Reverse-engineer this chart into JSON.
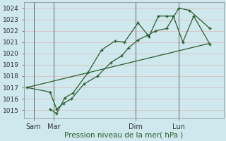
{
  "bg_color": "#cee8ee",
  "grid_color": "#ddb8b8",
  "line_color": "#2a5e2a",
  "title": "Pression niveau de la mer( hPa )",
  "ylim": [
    1014.3,
    1024.5
  ],
  "yticks": [
    1015,
    1016,
    1017,
    1018,
    1019,
    1020,
    1021,
    1022,
    1023,
    1024
  ],
  "day_labels": [
    "Sam",
    "Mar",
    "Dim",
    "Lun"
  ],
  "day_positions": [
    0.5,
    2.0,
    8.0,
    11.2
  ],
  "vline_positions": [
    0.5,
    2.0,
    8.0,
    11.2
  ],
  "xlim": [
    -0.2,
    14.5
  ],
  "series1_x": [
    0.0,
    1.7,
    2.2,
    2.7,
    3.3,
    4.2,
    5.2,
    6.2,
    7.0,
    7.5,
    8.2,
    8.9,
    9.5,
    10.3,
    11.2,
    12.0,
    13.5
  ],
  "series1_y": [
    1017.0,
    1016.6,
    1015.1,
    1015.6,
    1016.0,
    1017.3,
    1018.0,
    1019.2,
    1019.8,
    1020.5,
    1021.2,
    1021.6,
    1022.0,
    1022.2,
    1024.0,
    1023.8,
    1022.2
  ],
  "series2_x": [
    1.7,
    2.2,
    2.8,
    3.4,
    4.5,
    5.5,
    6.5,
    7.2,
    8.2,
    9.0,
    9.7,
    10.3,
    10.8,
    11.5,
    12.3,
    13.5
  ],
  "series2_y": [
    1015.1,
    1014.7,
    1016.1,
    1016.5,
    1018.3,
    1020.3,
    1021.1,
    1021.0,
    1022.7,
    1021.5,
    1023.3,
    1023.3,
    1023.3,
    1021.0,
    1023.3,
    1020.8
  ],
  "trend_x": [
    0.0,
    13.5
  ],
  "trend_y": [
    1017.0,
    1020.9
  ],
  "marker_size": 3.5,
  "marker_lw": 1.0,
  "line_width": 0.9,
  "vline_color": "#555555",
  "ylabel_fontsize": 6.5,
  "xlabel_fontsize": 7.5,
  "tick_fontsize": 7.0,
  "title_color": "#2a5e2a"
}
